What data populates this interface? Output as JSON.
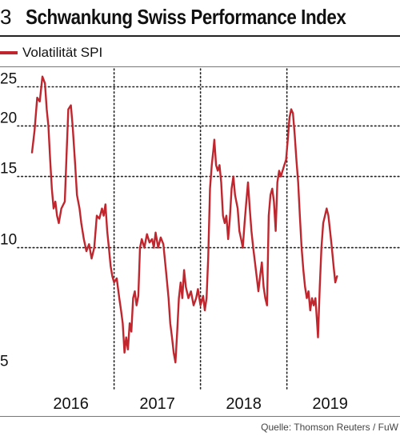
{
  "header": {
    "figure_number": "3",
    "title": "Schwankung Swiss Performance Index"
  },
  "source": "Quelle: Thomson Reuters / FuW",
  "colors": {
    "series": "#c0262d",
    "grid": "#222222",
    "rule": "#777777"
  },
  "chart_data": {
    "type": "line",
    "title": "Schwankung Swiss Performance Index",
    "xlabel": "",
    "ylabel": "",
    "xlim": [
      2015.55,
      2019.42
    ],
    "ylim": [
      4.6,
      27.2
    ],
    "yscale": "log",
    "yticks": [
      5,
      10,
      15,
      20,
      25
    ],
    "ytick_labels": [
      "5",
      "10",
      "15",
      "20",
      "25"
    ],
    "xticks": [
      2016,
      2017,
      2018,
      2019
    ],
    "xtick_labels": [
      "2016",
      "2017",
      "2018",
      "2019"
    ],
    "year_dividers": [
      2016.5,
      2017.5,
      2018.5
    ],
    "grid": true,
    "legend_position": "top-left",
    "series": [
      {
        "name": "Volatilität SPI",
        "color": "#c0262d",
        "points": [
          [
            2015.55,
            17.2
          ],
          [
            2015.58,
            19.5
          ],
          [
            2015.61,
            23.5
          ],
          [
            2015.64,
            23.0
          ],
          [
            2015.67,
            26.5
          ],
          [
            2015.7,
            25.5
          ],
          [
            2015.72,
            22.0
          ],
          [
            2015.74,
            20.0
          ],
          [
            2015.76,
            16.5
          ],
          [
            2015.78,
            14.0
          ],
          [
            2015.8,
            12.5
          ],
          [
            2015.82,
            13.0
          ],
          [
            2015.84,
            12.0
          ],
          [
            2015.86,
            11.5
          ],
          [
            2015.89,
            12.5
          ],
          [
            2015.93,
            13.0
          ],
          [
            2015.95,
            17.0
          ],
          [
            2015.97,
            22.0
          ],
          [
            2016.0,
            22.5
          ],
          [
            2016.02,
            20.0
          ],
          [
            2016.05,
            16.0
          ],
          [
            2016.07,
            13.5
          ],
          [
            2016.1,
            12.5
          ],
          [
            2016.12,
            11.5
          ],
          [
            2016.15,
            10.5
          ],
          [
            2016.18,
            9.8
          ],
          [
            2016.21,
            10.2
          ],
          [
            2016.24,
            9.4
          ],
          [
            2016.27,
            10.0
          ],
          [
            2016.3,
            12.0
          ],
          [
            2016.33,
            11.8
          ],
          [
            2016.36,
            12.5
          ],
          [
            2016.38,
            12.0
          ],
          [
            2016.4,
            12.8
          ],
          [
            2016.42,
            11.0
          ],
          [
            2016.44,
            10.0
          ],
          [
            2016.46,
            9.0
          ],
          [
            2016.48,
            8.5
          ],
          [
            2016.5,
            8.2
          ],
          [
            2016.53,
            8.4
          ],
          [
            2016.56,
            7.5
          ],
          [
            2016.58,
            7.0
          ],
          [
            2016.6,
            6.5
          ],
          [
            2016.62,
            5.5
          ],
          [
            2016.64,
            6.0
          ],
          [
            2016.66,
            5.6
          ],
          [
            2016.68,
            6.5
          ],
          [
            2016.7,
            6.2
          ],
          [
            2016.72,
            7.5
          ],
          [
            2016.74,
            7.8
          ],
          [
            2016.76,
            7.2
          ],
          [
            2016.78,
            7.6
          ],
          [
            2016.8,
            10.0
          ],
          [
            2016.82,
            10.5
          ],
          [
            2016.85,
            10.0
          ],
          [
            2016.88,
            10.8
          ],
          [
            2016.91,
            10.3
          ],
          [
            2016.94,
            10.5
          ],
          [
            2016.96,
            10.0
          ],
          [
            2016.98,
            10.9
          ],
          [
            2017.01,
            10.0
          ],
          [
            2017.04,
            10.6
          ],
          [
            2017.07,
            10.2
          ],
          [
            2017.1,
            8.8
          ],
          [
            2017.13,
            7.5
          ],
          [
            2017.15,
            6.5
          ],
          [
            2017.17,
            6.0
          ],
          [
            2017.19,
            5.5
          ],
          [
            2017.21,
            5.2
          ],
          [
            2017.23,
            6.2
          ],
          [
            2017.25,
            7.5
          ],
          [
            2017.27,
            8.2
          ],
          [
            2017.29,
            7.5
          ],
          [
            2017.31,
            8.8
          ],
          [
            2017.33,
            8.0
          ],
          [
            2017.36,
            7.5
          ],
          [
            2017.39,
            7.8
          ],
          [
            2017.42,
            7.2
          ],
          [
            2017.45,
            7.5
          ],
          [
            2017.47,
            7.9
          ],
          [
            2017.5,
            7.2
          ],
          [
            2017.53,
            7.6
          ],
          [
            2017.55,
            7.0
          ],
          [
            2017.57,
            7.5
          ],
          [
            2017.59,
            9.5
          ],
          [
            2017.61,
            14.0
          ],
          [
            2017.63,
            16.0
          ],
          [
            2017.65,
            17.5
          ],
          [
            2017.66,
            18.5
          ],
          [
            2017.68,
            16.0
          ],
          [
            2017.7,
            15.5
          ],
          [
            2017.72,
            16.0
          ],
          [
            2017.74,
            14.5
          ],
          [
            2017.76,
            12.0
          ],
          [
            2017.78,
            11.5
          ],
          [
            2017.8,
            12.0
          ],
          [
            2017.82,
            10.5
          ],
          [
            2017.84,
            11.8
          ],
          [
            2017.86,
            14.0
          ],
          [
            2017.88,
            15.0
          ],
          [
            2017.9,
            13.5
          ],
          [
            2017.93,
            12.5
          ],
          [
            2017.95,
            11.0
          ],
          [
            2017.97,
            10.5
          ],
          [
            2017.99,
            10.0
          ],
          [
            2018.01,
            11.5
          ],
          [
            2018.03,
            13.0
          ],
          [
            2018.05,
            14.5
          ],
          [
            2018.07,
            12.5
          ],
          [
            2018.09,
            11.0
          ],
          [
            2018.11,
            10.0
          ],
          [
            2018.13,
            9.2
          ],
          [
            2018.15,
            8.5
          ],
          [
            2018.17,
            7.8
          ],
          [
            2018.19,
            8.5
          ],
          [
            2018.21,
            9.2
          ],
          [
            2018.23,
            8.0
          ],
          [
            2018.25,
            7.5
          ],
          [
            2018.27,
            7.2
          ],
          [
            2018.29,
            12.0
          ],
          [
            2018.31,
            13.5
          ],
          [
            2018.33,
            14.0
          ],
          [
            2018.35,
            13.0
          ],
          [
            2018.37,
            11.0
          ],
          [
            2018.39,
            14.5
          ],
          [
            2018.41,
            15.5
          ],
          [
            2018.43,
            15.0
          ],
          [
            2018.45,
            15.5
          ],
          [
            2018.47,
            16.0
          ],
          [
            2018.49,
            16.5
          ],
          [
            2018.51,
            18.5
          ],
          [
            2018.53,
            21.0
          ],
          [
            2018.55,
            22.0
          ],
          [
            2018.57,
            21.5
          ],
          [
            2018.59,
            19.0
          ],
          [
            2018.61,
            16.5
          ],
          [
            2018.63,
            14.5
          ],
          [
            2018.65,
            12.0
          ],
          [
            2018.67,
            10.0
          ],
          [
            2018.69,
            8.8
          ],
          [
            2018.71,
            8.0
          ],
          [
            2018.73,
            7.5
          ],
          [
            2018.75,
            7.8
          ],
          [
            2018.77,
            7.0
          ],
          [
            2018.79,
            7.5
          ],
          [
            2018.81,
            7.2
          ],
          [
            2018.83,
            7.5
          ],
          [
            2018.85,
            6.5
          ],
          [
            2018.86,
            6.0
          ],
          [
            2018.88,
            8.0
          ],
          [
            2018.9,
            10.0
          ],
          [
            2018.92,
            11.5
          ],
          [
            2018.94,
            12.0
          ],
          [
            2018.96,
            12.5
          ],
          [
            2018.98,
            12.0
          ],
          [
            2019.0,
            11.0
          ],
          [
            2019.02,
            10.0
          ],
          [
            2019.04,
            9.0
          ],
          [
            2019.06,
            8.2
          ],
          [
            2019.08,
            8.5
          ]
        ]
      }
    ]
  }
}
